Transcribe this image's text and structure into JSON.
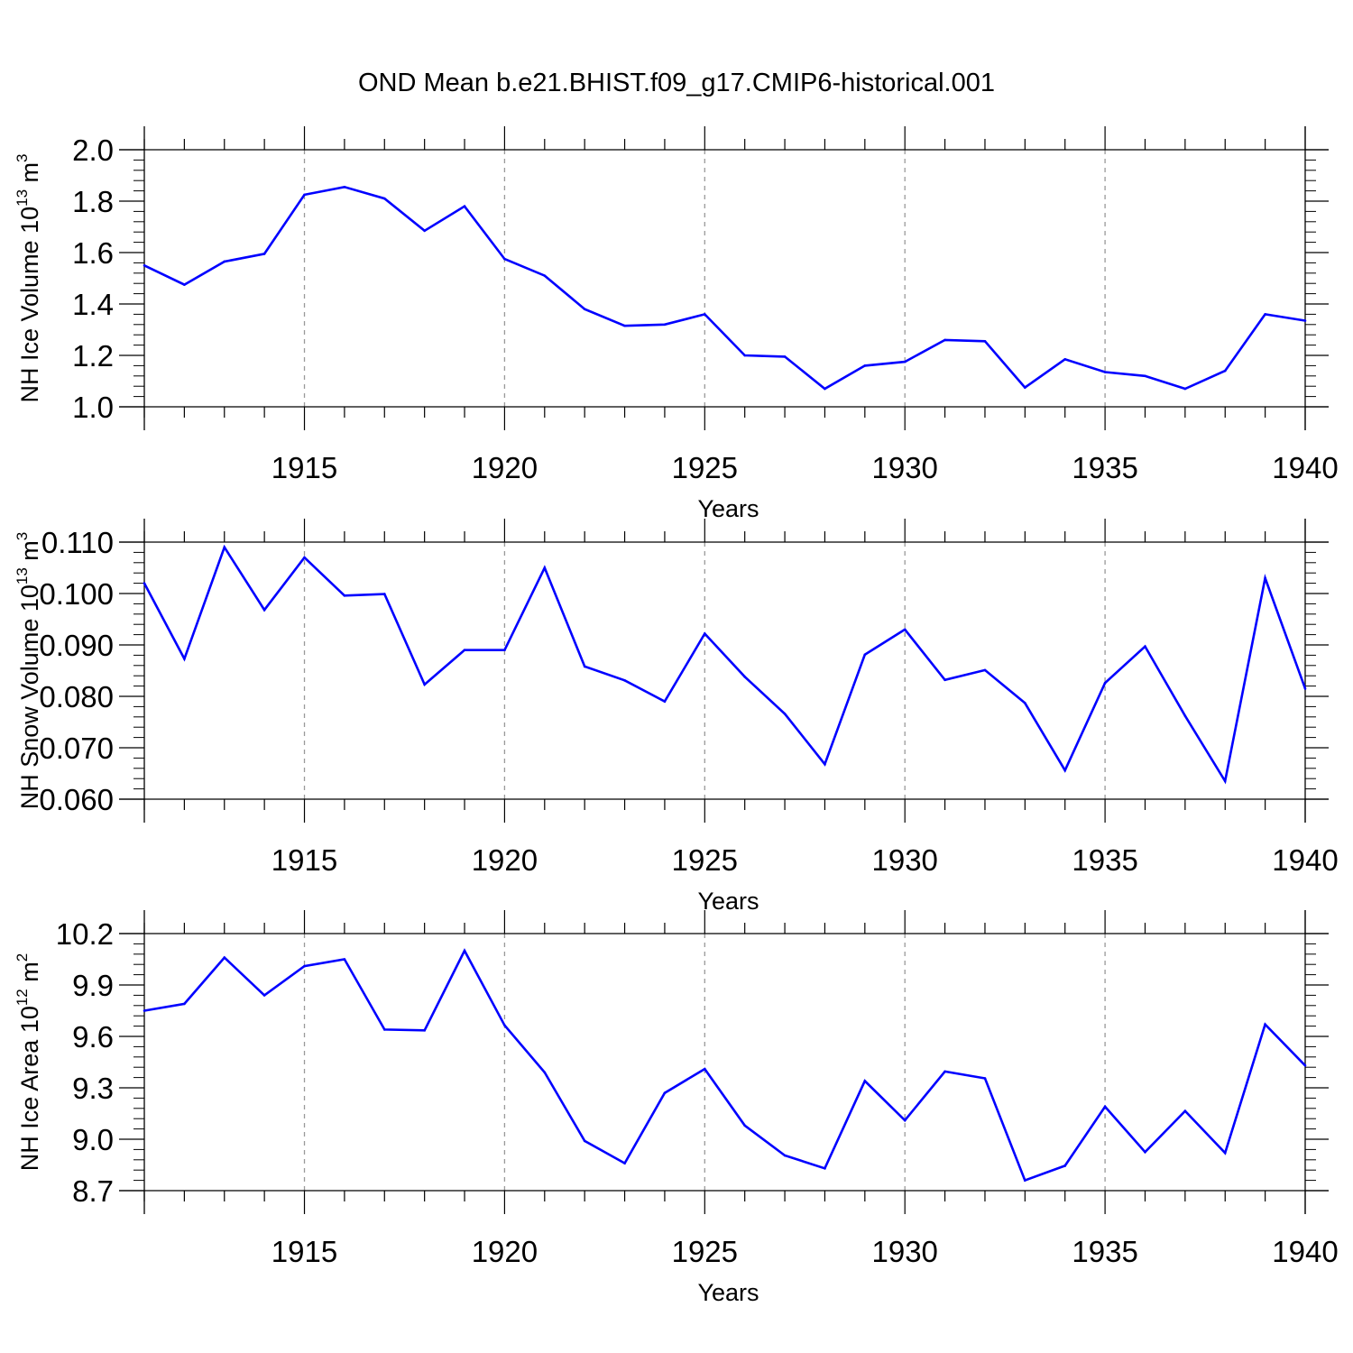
{
  "title": "OND Mean b.e21.BHIST.f09_g17.CMIP6-historical.001",
  "line_color": "#0000ff",
  "grid_color": "#999999",
  "chart_data": [
    {
      "type": "line",
      "ylabel": "NH Ice Volume 10",
      "ylabel_exp": "13",
      "ylabel_unit": " m",
      "ylabel_unit_exp": "3",
      "xlabel": "Years",
      "xlim": [
        1911,
        1940
      ],
      "ylim": [
        1.0,
        2.0
      ],
      "yticks": [
        1.0,
        1.2,
        1.4,
        1.6,
        1.8,
        2.0
      ],
      "ytick_labels": [
        "1.0",
        "1.2",
        "1.4",
        "1.6",
        "1.8",
        "2.0"
      ],
      "xticks": [
        1915,
        1920,
        1925,
        1930,
        1935,
        1940
      ],
      "xtick_labels": [
        "1915",
        "1920",
        "1925",
        "1930",
        "1935",
        "1940"
      ],
      "x": [
        1911,
        1912,
        1913,
        1914,
        1915,
        1916,
        1917,
        1918,
        1919,
        1920,
        1921,
        1922,
        1923,
        1924,
        1925,
        1926,
        1927,
        1928,
        1929,
        1930,
        1931,
        1932,
        1933,
        1934,
        1935,
        1936,
        1937,
        1938,
        1939,
        1940
      ],
      "y": [
        1.55,
        1.475,
        1.565,
        1.595,
        1.825,
        1.855,
        1.81,
        1.685,
        1.78,
        1.575,
        1.51,
        1.38,
        1.315,
        1.32,
        1.36,
        1.2,
        1.195,
        1.07,
        1.16,
        1.175,
        1.26,
        1.255,
        1.075,
        1.185,
        1.135,
        1.12,
        1.07,
        1.14,
        1.36,
        1.335
      ]
    },
    {
      "type": "line",
      "ylabel": "NH Snow Volume 10",
      "ylabel_exp": "13",
      "ylabel_unit": " m",
      "ylabel_unit_exp": "3",
      "xlabel": "Years",
      "xlim": [
        1911,
        1940
      ],
      "ylim": [
        0.06,
        0.11
      ],
      "yticks": [
        0.06,
        0.07,
        0.08,
        0.09,
        0.1,
        0.11
      ],
      "ytick_labels": [
        "0.060",
        "0.070",
        "0.080",
        "0.090",
        "0.100",
        "0.110"
      ],
      "xticks": [
        1915,
        1920,
        1925,
        1930,
        1935,
        1940
      ],
      "xtick_labels": [
        "1915",
        "1920",
        "1925",
        "1930",
        "1935",
        "1940"
      ],
      "x": [
        1911,
        1912,
        1913,
        1914,
        1915,
        1916,
        1917,
        1918,
        1919,
        1920,
        1921,
        1922,
        1923,
        1924,
        1925,
        1926,
        1927,
        1928,
        1929,
        1930,
        1931,
        1932,
        1933,
        1934,
        1935,
        1936,
        1937,
        1938,
        1939,
        1940
      ],
      "y": [
        0.102,
        0.0873,
        0.109,
        0.0968,
        0.107,
        0.0996,
        0.0999,
        0.0823,
        0.089,
        0.089,
        0.105,
        0.0858,
        0.0831,
        0.079,
        0.0922,
        0.0838,
        0.0766,
        0.0668,
        0.0881,
        0.093,
        0.0832,
        0.0851,
        0.0787,
        0.0656,
        0.0826,
        0.0897,
        0.0762,
        0.0635,
        0.103,
        0.0815
      ]
    },
    {
      "type": "line",
      "ylabel": "NH Ice Area 10",
      "ylabel_exp": "12",
      "ylabel_unit": " m",
      "ylabel_unit_exp": "2",
      "xlabel": "Years",
      "xlim": [
        1911,
        1940
      ],
      "ylim": [
        8.7,
        10.2
      ],
      "yticks": [
        8.7,
        9.0,
        9.3,
        9.6,
        9.9,
        10.2
      ],
      "ytick_labels": [
        "8.7",
        "9.0",
        "9.3",
        "9.6",
        "9.9",
        "10.2"
      ],
      "xticks": [
        1915,
        1920,
        1925,
        1930,
        1935,
        1940
      ],
      "xtick_labels": [
        "1915",
        "1920",
        "1925",
        "1930",
        "1935",
        "1940"
      ],
      "x": [
        1911,
        1912,
        1913,
        1914,
        1915,
        1916,
        1917,
        1918,
        1919,
        1920,
        1921,
        1922,
        1923,
        1924,
        1925,
        1926,
        1927,
        1928,
        1929,
        1930,
        1931,
        1932,
        1933,
        1934,
        1935,
        1936,
        1937,
        1938,
        1939,
        1940
      ],
      "y": [
        9.75,
        9.79,
        10.06,
        9.84,
        10.01,
        10.05,
        9.64,
        9.635,
        10.1,
        9.665,
        9.39,
        8.99,
        8.86,
        9.27,
        9.41,
        9.08,
        8.905,
        8.83,
        9.34,
        9.11,
        9.395,
        9.355,
        8.76,
        8.845,
        9.19,
        8.925,
        9.165,
        8.92,
        9.67,
        9.43
      ]
    }
  ]
}
